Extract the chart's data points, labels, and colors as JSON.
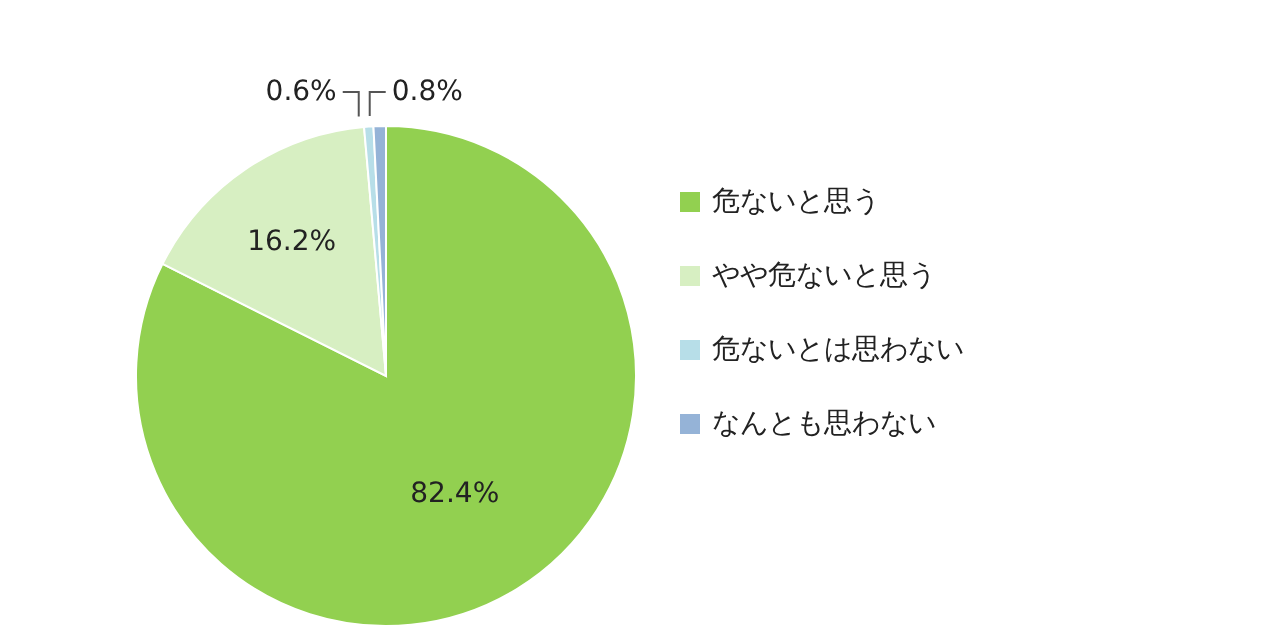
{
  "chart_data": {
    "type": "pie",
    "categories": [
      "危ないと思う",
      "やや危ないと思う",
      "危ないとは思わない",
      "なんとも思わない"
    ],
    "values": [
      82.4,
      16.2,
      0.6,
      0.8
    ],
    "value_labels": [
      "82.4%",
      "16.2%",
      "0.6%",
      "0.8%"
    ],
    "colors": [
      "#92d050",
      "#d7efc2",
      "#b7dee8",
      "#95b3d7"
    ],
    "legend": "right"
  }
}
